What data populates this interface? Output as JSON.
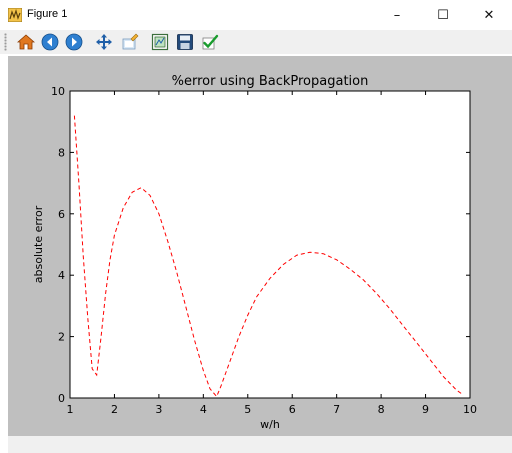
{
  "window": {
    "title": "Figure 1",
    "controls": {
      "minimize_glyph": "–",
      "maximize_glyph": "☐",
      "close_glyph": "✕"
    }
  },
  "toolbar": {
    "buttons": [
      {
        "name": "home",
        "icon": "home-icon"
      },
      {
        "name": "back",
        "icon": "back-arrow-icon"
      },
      {
        "name": "forward",
        "icon": "forward-arrow-icon"
      },
      {
        "name": "pan",
        "icon": "move-cross-icon"
      },
      {
        "name": "zoom",
        "icon": "zoom-icon"
      },
      {
        "name": "configure-subplots",
        "icon": "subplots-icon"
      },
      {
        "name": "save",
        "icon": "floppy-disk-icon"
      },
      {
        "name": "edit-parameters",
        "icon": "checkmark-icon"
      }
    ]
  },
  "colors": {
    "figure_background": "#bfbfbf",
    "plot_background": "#ffffff",
    "line": "#ff0000"
  },
  "chart_data": {
    "type": "line",
    "title": "%error using BackPropagation",
    "xlabel": "w/h",
    "ylabel": "absolute error",
    "xlim": [
      1,
      10
    ],
    "ylim": [
      0,
      10
    ],
    "xticks": [
      1,
      2,
      3,
      4,
      5,
      6,
      7,
      8,
      9,
      10
    ],
    "yticks": [
      0,
      2,
      4,
      6,
      8,
      10
    ],
    "grid": false,
    "line_style": "dashed",
    "series": [
      {
        "color": "#ff0000",
        "x": [
          1.1,
          1.2,
          1.3,
          1.4,
          1.5,
          1.6,
          1.7,
          1.8,
          1.9,
          2.0,
          2.2,
          2.4,
          2.6,
          2.8,
          3.0,
          3.2,
          3.4,
          3.6,
          3.8,
          4.0,
          4.15,
          4.3,
          4.4,
          4.6,
          4.8,
          5.0,
          5.2,
          5.5,
          5.8,
          6.1,
          6.4,
          6.7,
          7.0,
          7.3,
          7.6,
          7.9,
          8.2,
          8.5,
          8.8,
          9.1,
          9.4,
          9.7,
          9.85
        ],
        "y": [
          9.2,
          7.0,
          4.6,
          2.6,
          0.95,
          0.75,
          2.0,
          3.4,
          4.5,
          5.3,
          6.2,
          6.7,
          6.85,
          6.6,
          6.0,
          5.1,
          4.1,
          3.0,
          1.9,
          0.9,
          0.3,
          0.05,
          0.4,
          1.2,
          2.0,
          2.7,
          3.3,
          3.9,
          4.35,
          4.65,
          4.75,
          4.7,
          4.5,
          4.2,
          3.85,
          3.4,
          2.9,
          2.35,
          1.8,
          1.25,
          0.7,
          0.25,
          0.1
        ]
      }
    ]
  }
}
